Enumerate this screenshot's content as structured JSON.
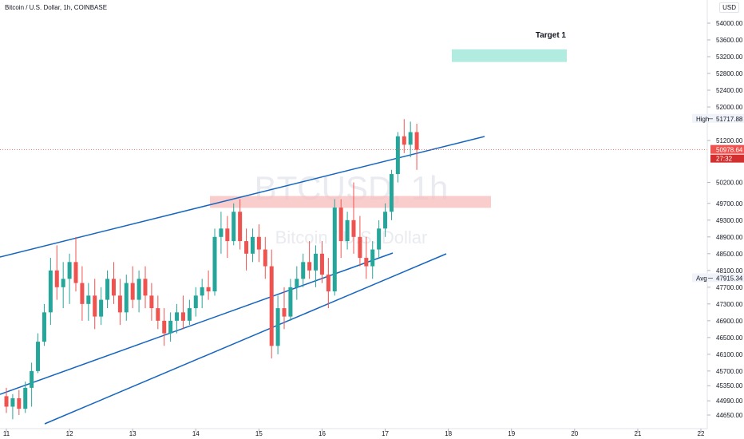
{
  "header": {
    "title": "Bitcoin / U.S. Dollar, 1h, COINBASE",
    "currency": "USD"
  },
  "watermark": {
    "symbol": "BTCUSD, 1h",
    "name": "Bitcoin / U.S. Dollar"
  },
  "price_scale": {
    "ticks": [
      54000,
      53600,
      53200,
      52800,
      52400,
      52000,
      51200,
      50200,
      49700,
      49300,
      48900,
      48500,
      48100,
      47700,
      47300,
      46900,
      46500,
      46100,
      45700,
      45350,
      44990,
      44650
    ],
    "tick_labels": [
      "54000.00",
      "53600.00",
      "53200.00",
      "52800.00",
      "52400.00",
      "52000.00",
      "51200.00",
      "50200.00",
      "49700.00",
      "49300.00",
      "48900.00",
      "48500.00",
      "48100.00",
      "47700.00",
      "47300.00",
      "46900.00",
      "46500.00",
      "46100.00",
      "45700.00",
      "45350.00",
      "44990.00",
      "44650.00"
    ],
    "markers": [
      {
        "label": "High",
        "value": "51717.88",
        "price": 51717.88,
        "style": "plain"
      },
      {
        "label": "",
        "value": "50978.64",
        "price": 50978.64,
        "style": "current",
        "countdown": "27:32",
        "color": "#ef5350"
      },
      {
        "label": "Avg",
        "value": "47915.34",
        "price": 47915.34,
        "style": "plain"
      }
    ]
  },
  "time_axis": {
    "labels": [
      "11",
      "12",
      "13",
      "14",
      "15",
      "16",
      "17",
      "18",
      "19",
      "20",
      "21",
      "22"
    ]
  },
  "annotations": {
    "target": {
      "label": "Target 1",
      "price_low": 53150,
      "price_high": 53300,
      "color": "#b2ebdf"
    },
    "resistance_zone": {
      "price_low": 49650,
      "price_high": 49820,
      "color": "#f8c0bf"
    }
  },
  "colors": {
    "up": "#26a69a",
    "down": "#ef5350",
    "trendline": "#1565c0",
    "current_line": "#ef5350"
  },
  "chart_data": {
    "type": "candlestick",
    "title": "Bitcoin / U.S. Dollar, 1h, COINBASE",
    "y_range": [
      44500,
      54250
    ],
    "x_range": [
      10.9,
      22.0
    ],
    "series": [
      {
        "x": 11.0,
        "open": 45100,
        "high": 45300,
        "low": 44700,
        "close": 44850
      },
      {
        "x": 11.1,
        "open": 44850,
        "high": 45150,
        "low": 44550,
        "close": 45050
      },
      {
        "x": 11.2,
        "open": 45050,
        "high": 45250,
        "low": 44650,
        "close": 44800
      },
      {
        "x": 11.3,
        "open": 44800,
        "high": 45450,
        "low": 44700,
        "close": 45300
      },
      {
        "x": 11.4,
        "open": 45300,
        "high": 45900,
        "low": 44850,
        "close": 45700
      },
      {
        "x": 11.5,
        "open": 45700,
        "high": 46600,
        "low": 45650,
        "close": 46400
      },
      {
        "x": 11.6,
        "open": 46400,
        "high": 47300,
        "low": 46300,
        "close": 47100
      },
      {
        "x": 11.7,
        "open": 47100,
        "high": 48400,
        "low": 46800,
        "close": 48100
      },
      {
        "x": 11.8,
        "open": 48100,
        "high": 48700,
        "low": 47400,
        "close": 47700
      },
      {
        "x": 11.9,
        "open": 47700,
        "high": 48300,
        "low": 47200,
        "close": 47900
      },
      {
        "x": 12.0,
        "open": 47900,
        "high": 48500,
        "low": 47300,
        "close": 48300
      },
      {
        "x": 12.1,
        "open": 48300,
        "high": 48900,
        "low": 47600,
        "close": 47800
      },
      {
        "x": 12.2,
        "open": 47800,
        "high": 48200,
        "low": 46900,
        "close": 47300
      },
      {
        "x": 12.3,
        "open": 47300,
        "high": 47800,
        "low": 46900,
        "close": 47500
      },
      {
        "x": 12.4,
        "open": 47500,
        "high": 47900,
        "low": 46700,
        "close": 47000
      },
      {
        "x": 12.5,
        "open": 47000,
        "high": 47700,
        "low": 46800,
        "close": 47400
      },
      {
        "x": 12.6,
        "open": 47400,
        "high": 48100,
        "low": 47200,
        "close": 47900
      },
      {
        "x": 12.7,
        "open": 47900,
        "high": 48300,
        "low": 47300,
        "close": 47500
      },
      {
        "x": 12.8,
        "open": 47500,
        "high": 47900,
        "low": 46800,
        "close": 47100
      },
      {
        "x": 12.9,
        "open": 47100,
        "high": 48000,
        "low": 46900,
        "close": 47800
      },
      {
        "x": 13.0,
        "open": 47800,
        "high": 48200,
        "low": 47200,
        "close": 47400
      },
      {
        "x": 13.1,
        "open": 47400,
        "high": 48100,
        "low": 47100,
        "close": 47900
      },
      {
        "x": 13.2,
        "open": 47900,
        "high": 48200,
        "low": 47200,
        "close": 47500
      },
      {
        "x": 13.3,
        "open": 47500,
        "high": 47800,
        "low": 46900,
        "close": 47200
      },
      {
        "x": 13.4,
        "open": 47200,
        "high": 47500,
        "low": 46700,
        "close": 46900
      },
      {
        "x": 13.5,
        "open": 46900,
        "high": 47200,
        "low": 46300,
        "close": 46600
      },
      {
        "x": 13.6,
        "open": 46600,
        "high": 47100,
        "low": 46400,
        "close": 46900
      },
      {
        "x": 13.7,
        "open": 46900,
        "high": 47300,
        "low": 46600,
        "close": 47100
      },
      {
        "x": 13.8,
        "open": 47100,
        "high": 47500,
        "low": 46700,
        "close": 46900
      },
      {
        "x": 13.9,
        "open": 46900,
        "high": 47400,
        "low": 46800,
        "close": 47200
      },
      {
        "x": 14.0,
        "open": 47200,
        "high": 47700,
        "low": 47000,
        "close": 47500
      },
      {
        "x": 14.1,
        "open": 47500,
        "high": 47900,
        "low": 47200,
        "close": 47700
      },
      {
        "x": 14.2,
        "open": 47700,
        "high": 48100,
        "low": 47400,
        "close": 47600
      },
      {
        "x": 14.3,
        "open": 47600,
        "high": 49100,
        "low": 47500,
        "close": 48900
      },
      {
        "x": 14.4,
        "open": 48900,
        "high": 49500,
        "low": 48500,
        "close": 49100
      },
      {
        "x": 14.5,
        "open": 49100,
        "high": 49400,
        "low": 48400,
        "close": 48800
      },
      {
        "x": 14.6,
        "open": 48800,
        "high": 49700,
        "low": 48700,
        "close": 49500
      },
      {
        "x": 14.7,
        "open": 49500,
        "high": 49800,
        "low": 48600,
        "close": 48800
      },
      {
        "x": 14.8,
        "open": 48800,
        "high": 49100,
        "low": 48100,
        "close": 48500
      },
      {
        "x": 14.9,
        "open": 48500,
        "high": 49100,
        "low": 48300,
        "close": 48900
      },
      {
        "x": 15.0,
        "open": 48900,
        "high": 49200,
        "low": 48300,
        "close": 48600
      },
      {
        "x": 15.1,
        "open": 48600,
        "high": 48900,
        "low": 47900,
        "close": 48200
      },
      {
        "x": 15.2,
        "open": 48200,
        "high": 48600,
        "low": 46000,
        "close": 46300
      },
      {
        "x": 15.3,
        "open": 46300,
        "high": 47500,
        "low": 46100,
        "close": 47200
      },
      {
        "x": 15.4,
        "open": 47200,
        "high": 47700,
        "low": 46700,
        "close": 47000
      },
      {
        "x": 15.5,
        "open": 47000,
        "high": 47900,
        "low": 46900,
        "close": 47700
      },
      {
        "x": 15.6,
        "open": 47700,
        "high": 48200,
        "low": 47400,
        "close": 47900
      },
      {
        "x": 15.7,
        "open": 47900,
        "high": 48500,
        "low": 47700,
        "close": 48300
      },
      {
        "x": 15.8,
        "open": 48300,
        "high": 48800,
        "low": 47900,
        "close": 48100
      },
      {
        "x": 15.9,
        "open": 48100,
        "high": 48700,
        "low": 47700,
        "close": 48500
      },
      {
        "x": 16.0,
        "open": 48500,
        "high": 48800,
        "low": 47800,
        "close": 48000
      },
      {
        "x": 16.1,
        "open": 48000,
        "high": 48400,
        "low": 47200,
        "close": 47600
      },
      {
        "x": 16.2,
        "open": 47600,
        "high": 49800,
        "low": 47500,
        "close": 49600
      },
      {
        "x": 16.3,
        "open": 49600,
        "high": 49800,
        "low": 48400,
        "close": 48800
      },
      {
        "x": 16.4,
        "open": 48800,
        "high": 49500,
        "low": 48600,
        "close": 49300
      },
      {
        "x": 16.5,
        "open": 49300,
        "high": 50200,
        "low": 48500,
        "close": 48900
      },
      {
        "x": 16.6,
        "open": 48900,
        "high": 49400,
        "low": 48200,
        "close": 48400
      },
      {
        "x": 16.7,
        "open": 48400,
        "high": 48900,
        "low": 47900,
        "close": 48200
      },
      {
        "x": 16.8,
        "open": 48200,
        "high": 48800,
        "low": 47900,
        "close": 48600
      },
      {
        "x": 16.9,
        "open": 48600,
        "high": 49300,
        "low": 48400,
        "close": 49100
      },
      {
        "x": 17.0,
        "open": 49100,
        "high": 49700,
        "low": 48900,
        "close": 49500
      },
      {
        "x": 17.1,
        "open": 49500,
        "high": 50500,
        "low": 49300,
        "close": 50400
      },
      {
        "x": 17.2,
        "open": 50400,
        "high": 51400,
        "low": 50200,
        "close": 51300
      },
      {
        "x": 17.3,
        "open": 51300,
        "high": 51710,
        "low": 50900,
        "close": 51100
      },
      {
        "x": 17.4,
        "open": 51100,
        "high": 51650,
        "low": 50800,
        "close": 51400
      },
      {
        "x": 17.5,
        "open": 51400,
        "high": 51600,
        "low": 50500,
        "close": 50978.64
      }
    ]
  }
}
